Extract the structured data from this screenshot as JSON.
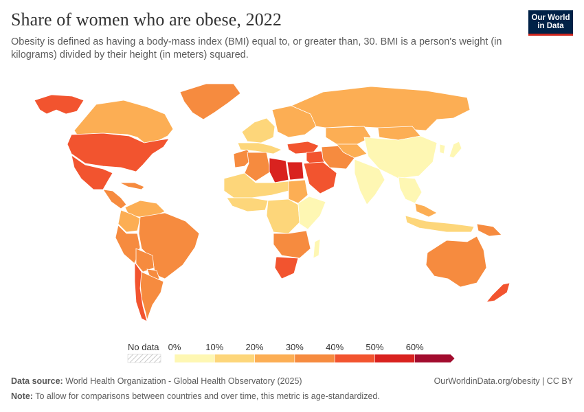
{
  "header": {
    "title": "Share of women who are obese, 2022",
    "subtitle": "Obesity is defined as having a body-mass index (BMI) equal to, or greater than, 30. BMI is a person's weight (in kilograms) divided by their height (in meters) squared."
  },
  "logo": {
    "line1": "Our World",
    "line2": "in Data"
  },
  "legend": {
    "no_data_label": "No data",
    "ticks": [
      "0%",
      "10%",
      "20%",
      "30%",
      "40%",
      "50%",
      "60%"
    ],
    "bins": [
      {
        "from": 0,
        "to": 10,
        "color": "#fef7b3"
      },
      {
        "from": 10,
        "to": 20,
        "color": "#fdd67a"
      },
      {
        "from": 20,
        "to": 30,
        "color": "#fcae54"
      },
      {
        "from": 30,
        "to": 40,
        "color": "#f68b3f"
      },
      {
        "from": 40,
        "to": 50,
        "color": "#f2542f"
      },
      {
        "from": 50,
        "to": 60,
        "color": "#d9221f"
      },
      {
        "from": 60,
        "to": 70,
        "color": "#a20c2e"
      }
    ]
  },
  "chart_data": {
    "type": "choropleth",
    "metric": "Share of women who are obese (%)",
    "year": 2022,
    "regions": [
      {
        "name": "Canada",
        "bin": "20-30%"
      },
      {
        "name": "United States",
        "bin": "40-50%"
      },
      {
        "name": "Mexico",
        "bin": "40-50%"
      },
      {
        "name": "Central America",
        "bin": "30-40%"
      },
      {
        "name": "Greenland",
        "bin": "30-40%"
      },
      {
        "name": "Alaska",
        "bin": "40-50%"
      },
      {
        "name": "Brazil",
        "bin": "30-40%"
      },
      {
        "name": "Colombia",
        "bin": "20-30%"
      },
      {
        "name": "Venezuela",
        "bin": "20-30%"
      },
      {
        "name": "Peru",
        "bin": "30-40%"
      },
      {
        "name": "Bolivia",
        "bin": "30-40%"
      },
      {
        "name": "Argentina",
        "bin": "30-40%"
      },
      {
        "name": "Chile",
        "bin": "40-50%"
      },
      {
        "name": "Paraguay",
        "bin": "30-40%"
      },
      {
        "name": "Western Europe",
        "bin": "10-20%"
      },
      {
        "name": "Southern Europe",
        "bin": "10-20%"
      },
      {
        "name": "Eastern Europe",
        "bin": "20-30%"
      },
      {
        "name": "Russia",
        "bin": "20-30%"
      },
      {
        "name": "Turkey",
        "bin": "40-50%"
      },
      {
        "name": "Egypt",
        "bin": "50-60%"
      },
      {
        "name": "Libya",
        "bin": "50-60%"
      },
      {
        "name": "Algeria",
        "bin": "30-40%"
      },
      {
        "name": "Morocco",
        "bin": "30-40%"
      },
      {
        "name": "Saudi Arabia",
        "bin": "40-50%"
      },
      {
        "name": "Iraq",
        "bin": "40-50%"
      },
      {
        "name": "Iran",
        "bin": "30-40%"
      },
      {
        "name": "Kazakhstan",
        "bin": "20-30%"
      },
      {
        "name": "Central Asia",
        "bin": "20-30%"
      },
      {
        "name": "Mongolia",
        "bin": "20-30%"
      },
      {
        "name": "China",
        "bin": "0-10%"
      },
      {
        "name": "India",
        "bin": "0-10%"
      },
      {
        "name": "Southeast Asia",
        "bin": "0-10%"
      },
      {
        "name": "Japan",
        "bin": "0-10%"
      },
      {
        "name": "Korea",
        "bin": "0-10%"
      },
      {
        "name": "Indonesia",
        "bin": "10-20%"
      },
      {
        "name": "Malaysia",
        "bin": "20-30%"
      },
      {
        "name": "Papua New Guinea",
        "bin": "30-40%"
      },
      {
        "name": "Australia",
        "bin": "30-40%"
      },
      {
        "name": "New Zealand",
        "bin": "40-50%"
      },
      {
        "name": "Sahel",
        "bin": "10-20%"
      },
      {
        "name": "West Africa coast",
        "bin": "10-20%"
      },
      {
        "name": "Central Africa",
        "bin": "10-20%"
      },
      {
        "name": "East Africa",
        "bin": "0-10%"
      },
      {
        "name": "Sudan",
        "bin": "20-30%"
      },
      {
        "name": "Southern Africa",
        "bin": "30-40%"
      },
      {
        "name": "South Africa",
        "bin": "40-50%"
      },
      {
        "name": "Madagascar",
        "bin": "0-10%"
      },
      {
        "name": "Caribbean",
        "bin": "30-40%"
      }
    ]
  },
  "footer": {
    "source_label": "Data source:",
    "source_text": "World Health Organization - Global Health Observatory (2025)",
    "url": "OurWorldinData.org/obesity",
    "separator": " | ",
    "license": "CC BY",
    "note_label": "Note:",
    "note_text": "To allow for comparisons between countries and over time, this metric is age-standardized."
  }
}
